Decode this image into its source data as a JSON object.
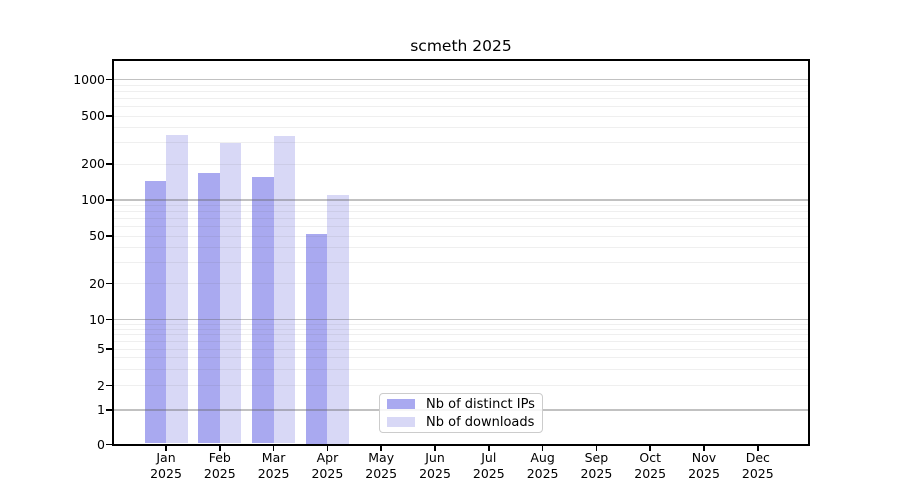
{
  "chart_data": {
    "type": "bar",
    "title": "scmeth 2025",
    "categories": [
      "Jan 2025",
      "Feb 2025",
      "Mar 2025",
      "Apr 2025",
      "May 2025",
      "Jun 2025",
      "Jul 2025",
      "Aug 2025",
      "Sep 2025",
      "Oct 2025",
      "Nov 2025",
      "Dec 2025"
    ],
    "month_labels": [
      "Jan",
      "Feb",
      "Mar",
      "Apr",
      "May",
      "Jun",
      "Jul",
      "Aug",
      "Sep",
      "Oct",
      "Nov",
      "Dec"
    ],
    "year_label": "2025",
    "series": [
      {
        "name": "Nb of distinct IPs",
        "color": "#a9a9f0",
        "values": [
          145,
          168,
          155,
          52,
          null,
          null,
          null,
          null,
          null,
          null,
          null,
          null
        ]
      },
      {
        "name": "Nb of downloads",
        "color": "#d8d8f6",
        "values": [
          350,
          300,
          340,
          110,
          null,
          null,
          null,
          null,
          null,
          null,
          null,
          null
        ]
      }
    ],
    "xlabel": "",
    "ylabel": "",
    "yscale": "symlog",
    "ylim": [
      0,
      1500
    ],
    "yticks": [
      0,
      1,
      2,
      5,
      10,
      20,
      50,
      100,
      200,
      500,
      1000
    ],
    "grid": "horizontal, light minor lines + darker major lines at powers of 10",
    "legend_position": "lower center inside plot"
  }
}
